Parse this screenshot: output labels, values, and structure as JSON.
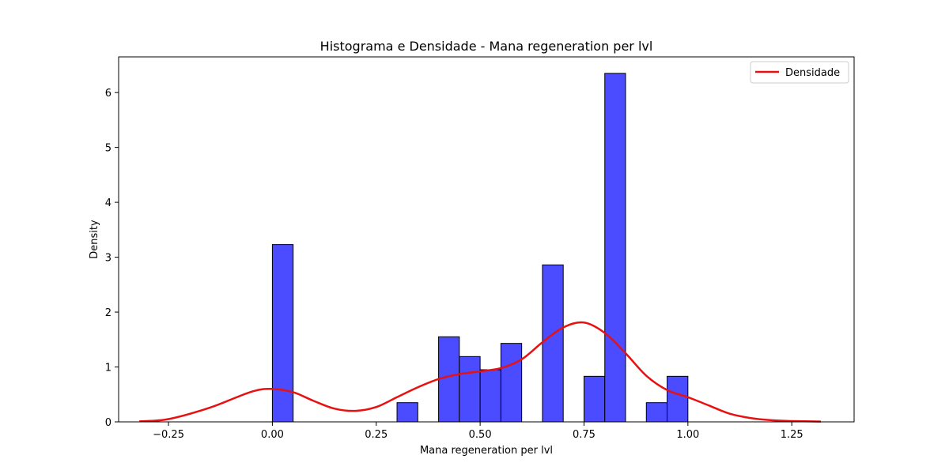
{
  "chart_data": {
    "type": "bar",
    "title": "Histograma e Densidade - Mana regeneration per lvl",
    "xlabel": "Mana regeneration per lvl",
    "ylabel": "Density",
    "xlim": [
      -0.37,
      1.4
    ],
    "ylim": [
      0,
      6.65
    ],
    "x_ticks": [
      -0.25,
      0.0,
      0.25,
      0.5,
      0.75,
      1.0,
      1.25
    ],
    "x_tick_labels": [
      "−0.25",
      "0.00",
      "0.25",
      "0.50",
      "0.75",
      "1.00",
      "1.25"
    ],
    "y_ticks": [
      0,
      1,
      2,
      3,
      4,
      5,
      6
    ],
    "y_tick_labels": [
      "0",
      "1",
      "2",
      "3",
      "4",
      "5",
      "6"
    ],
    "grid": false,
    "legend": {
      "position": "top-right",
      "entries": [
        "Densidade"
      ]
    },
    "colors": {
      "bar_fill": "#4b4bff",
      "bar_edge": "#000000",
      "density_line": "#e81010"
    },
    "histogram": {
      "bin_width": 0.05,
      "bin_starts": [
        0.0,
        0.3,
        0.4,
        0.45,
        0.5,
        0.55,
        0.65,
        0.75,
        0.8,
        0.9,
        0.95
      ],
      "densities": [
        3.23,
        0.35,
        1.55,
        1.19,
        0.95,
        1.43,
        2.86,
        0.83,
        6.35,
        0.35,
        0.83
      ]
    },
    "series": [
      {
        "name": "Densidade",
        "x": [
          -0.32,
          -0.25,
          -0.15,
          -0.05,
          0.0,
          0.05,
          0.1,
          0.15,
          0.2,
          0.25,
          0.3,
          0.35,
          0.4,
          0.45,
          0.5,
          0.55,
          0.6,
          0.65,
          0.7,
          0.75,
          0.8,
          0.85,
          0.9,
          0.95,
          1.0,
          1.05,
          1.1,
          1.15,
          1.2,
          1.25,
          1.32
        ],
        "y": [
          0.01,
          0.05,
          0.26,
          0.55,
          0.6,
          0.54,
          0.38,
          0.24,
          0.2,
          0.27,
          0.45,
          0.63,
          0.78,
          0.87,
          0.92,
          0.98,
          1.14,
          1.45,
          1.72,
          1.81,
          1.62,
          1.25,
          0.84,
          0.58,
          0.45,
          0.3,
          0.15,
          0.07,
          0.03,
          0.015,
          0.005
        ]
      }
    ]
  }
}
